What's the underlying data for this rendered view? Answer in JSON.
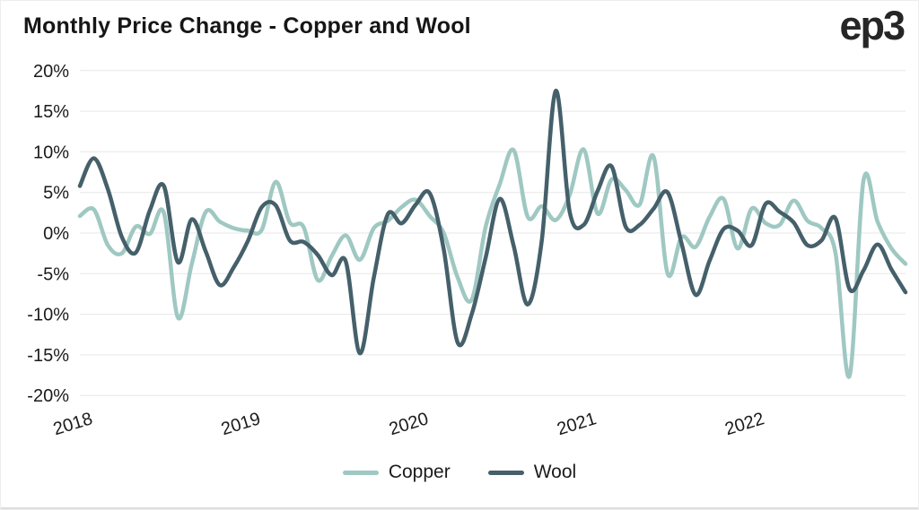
{
  "header": {
    "title": "Monthly Price Change - Copper and Wool",
    "logo": "ep3"
  },
  "legend": [
    {
      "label": "Copper",
      "color": "#9FC8C2"
    },
    {
      "label": "Wool",
      "color": "#45606A"
    }
  ],
  "chart_data": {
    "type": "line",
    "title": "Monthly Price Change - Copper and Wool",
    "x_interval": "monthly",
    "x_start": "2018-01",
    "x_end": "2022-12",
    "xticks": [
      "2018",
      "2019",
      "2020",
      "2021",
      "2022"
    ],
    "yticks": [
      "20%",
      "15%",
      "10%",
      "5%",
      "0%",
      "-5%",
      "-10%",
      "-15%",
      "-20%"
    ],
    "ylim": [
      -20,
      20
    ],
    "grid": "horizontal",
    "gridline_color": "#e7e7e7",
    "legend_position": "bottom",
    "line_width": 4.5,
    "series": [
      {
        "name": "Copper",
        "color": "#9FC8C2",
        "values": [
          2.1,
          2.9,
          -1.5,
          -2.5,
          0.8,
          -0.1,
          2.5,
          -10.4,
          -3.8,
          2.6,
          1.4,
          0.6,
          0.3,
          0.4,
          6.3,
          1.3,
          0.7,
          -5.8,
          -2.8,
          -0.3,
          -3.3,
          0.6,
          1.5,
          3.2,
          4.1,
          2.1,
          0.0,
          -5.5,
          -8.2,
          0.8,
          6.0,
          10.2,
          2.0,
          3.3,
          1.6,
          4.7,
          10.3,
          2.4,
          6.6,
          5.3,
          3.5,
          9.4,
          -5.0,
          -0.5,
          -1.7,
          2.0,
          4.2,
          -1.9,
          3.0,
          1.2,
          1.0,
          4.0,
          1.5,
          0.6,
          -2.5,
          -17.6,
          6.5,
          1.4,
          -1.9,
          -3.8
        ]
      },
      {
        "name": "Wool",
        "color": "#45606A",
        "values": [
          5.8,
          9.2,
          5.4,
          -0.5,
          -2.4,
          2.8,
          5.8,
          -3.6,
          1.7,
          -2.3,
          -6.4,
          -4.2,
          -1.0,
          3.2,
          3.4,
          -0.9,
          -1.1,
          -2.7,
          -5.2,
          -3.5,
          -14.8,
          -5.5,
          2.3,
          1.2,
          3.5,
          4.9,
          -2.0,
          -13.5,
          -10.0,
          -3.0,
          4.2,
          -1.6,
          -8.8,
          -1.0,
          17.5,
          2.6,
          1.0,
          5.2,
          8.2,
          0.8,
          1.0,
          3.0,
          5.0,
          -1.3,
          -7.6,
          -3.4,
          0.5,
          0.3,
          -1.5,
          3.6,
          2.6,
          1.3,
          -1.5,
          -0.9,
          1.8,
          -6.9,
          -4.6,
          -1.4,
          -4.5,
          -7.3
        ]
      }
    ]
  }
}
